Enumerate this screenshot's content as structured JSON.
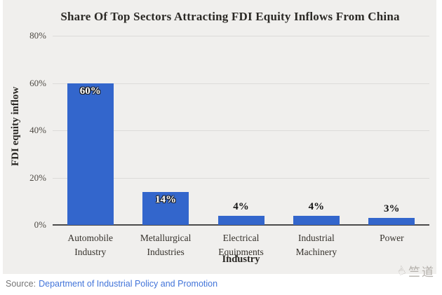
{
  "chart_data": {
    "type": "bar",
    "title": "Share Of Top Sectors Attracting FDI Equity Inflows From China",
    "categories": [
      "Automobile Industry",
      "Metallurgical Industries",
      "Electrical Equipments",
      "Industrial Machinery",
      "Power"
    ],
    "values": [
      60,
      14,
      4,
      4,
      3
    ],
    "data_labels": [
      "60%",
      "14%",
      "4%",
      "4%",
      "3%"
    ],
    "xlabel": "Industry",
    "ylabel": "FDI equity inflow",
    "ylim": [
      0,
      80
    ],
    "yticks": [
      "0%",
      "20%",
      "40%",
      "60%",
      "80%"
    ],
    "grid": true,
    "legend": "none",
    "bar_color": "#3366cc",
    "plot_background": "#f0efed"
  },
  "source": {
    "prefix": "Source:",
    "link_text": "Department of Industrial Policy and Promotion"
  },
  "watermark": {
    "icon_glyph": "☝",
    "text": "竺道"
  }
}
